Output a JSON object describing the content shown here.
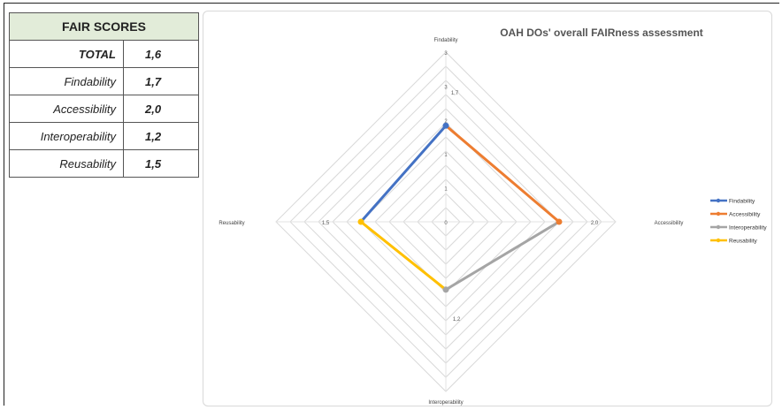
{
  "table": {
    "header": "FAIR SCORES",
    "rows": [
      {
        "name": "TOTAL",
        "value": "1,6"
      },
      {
        "name": "Findability",
        "value": "1,7"
      },
      {
        "name": "Accessibility",
        "value": "2,0"
      },
      {
        "name": "Interoperability",
        "value": "1,2"
      },
      {
        "name": "Reusability",
        "value": "1,5"
      }
    ]
  },
  "chart_data": {
    "type": "radar",
    "title": "OAH DOs' overall FAIRness assessment",
    "axes": [
      "Findability",
      "Accessibility",
      "Interoperability",
      "Reusability"
    ],
    "rmax": 3,
    "series": [
      {
        "name": "Findability",
        "color": "#4472c4"
      },
      {
        "name": "Accessibility",
        "color": "#ed7d31"
      },
      {
        "name": "Interoperability",
        "color": "#a5a5a5"
      },
      {
        "name": "Reusability",
        "color": "#ffc000"
      }
    ],
    "values": {
      "Findability": 1.7,
      "Accessibility": 2.0,
      "Interoperability": 1.2,
      "Reusability": 1.5
    },
    "value_labels": {
      "Accessibility": "2,0",
      "Interoperability": "1,2",
      "Reusability": "1,5",
      "Findability": "1,7"
    },
    "tick_labels": [
      "0",
      "1",
      "1",
      "2",
      "3",
      "3"
    ],
    "legend_position": "right"
  }
}
